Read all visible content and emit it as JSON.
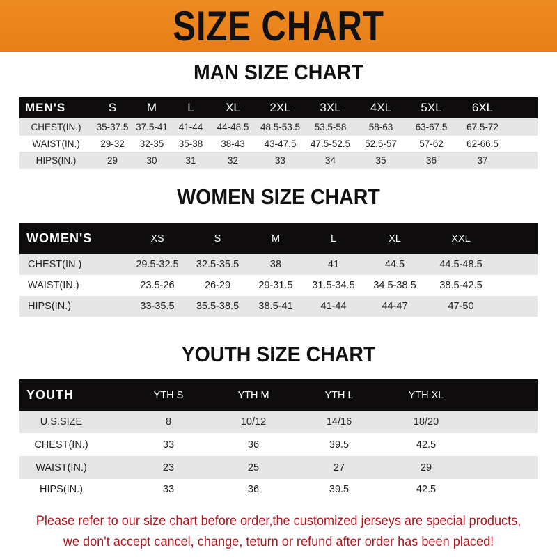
{
  "banner": {
    "title": "SIZE CHART",
    "color": "#ec8520"
  },
  "men": {
    "title": "MAN SIZE CHART",
    "header": [
      "MEN'S",
      "S",
      "M",
      "L",
      "XL",
      "2XL",
      "3XL",
      "4XL",
      "5XL",
      "6XL"
    ],
    "rows": [
      [
        "CHEST(IN.)",
        "35-37.5",
        "37.5-41",
        "41-44",
        "44-48.5",
        "48.5-53.5",
        "53.5-58",
        "58-63",
        "63-67.5",
        "67.5-72"
      ],
      [
        "WAIST(IN.)",
        "29-32",
        "32-35",
        "35-38",
        "38-43",
        "43-47.5",
        "47.5-52.5",
        "52.5-57",
        "57-62",
        "62-66.5"
      ],
      [
        "HIPS(IN.)",
        "29",
        "30",
        "31",
        "32",
        "33",
        "34",
        "35",
        "36",
        "37"
      ]
    ]
  },
  "women": {
    "title": "WOMEN SIZE CHART",
    "header": [
      "WOMEN'S",
      "XS",
      "S",
      "M",
      "L",
      "XL",
      "XXL"
    ],
    "rows": [
      [
        "CHEST(IN.)",
        "29.5-32.5",
        "32.5-35.5",
        "38",
        "41",
        "44.5",
        "44.5-48.5"
      ],
      [
        "WAIST(IN.)",
        "23.5-26",
        "26-29",
        "29-31.5",
        "31.5-34.5",
        "34.5-38.5",
        "38.5-42.5"
      ],
      [
        "HIPS(IN.)",
        "33-35.5",
        "35.5-38.5",
        "38.5-41",
        "41-44",
        "44-47",
        "47-50"
      ]
    ]
  },
  "youth": {
    "title": "YOUTH SIZE CHART",
    "header": [
      "YOUTH",
      "YTH S",
      "YTH M",
      "YTH L",
      "YTH XL"
    ],
    "rows": [
      [
        "U.S.SIZE",
        "8",
        "10/12",
        "14/16",
        "18/20"
      ],
      [
        "CHEST(IN.)",
        "33",
        "36",
        "39.5",
        "42.5"
      ],
      [
        "WAIST(IN.)",
        "23",
        "25",
        "27",
        "29"
      ],
      [
        "HIPS(IN.)",
        "33",
        "36",
        "39.5",
        "42.5"
      ]
    ]
  },
  "note": {
    "line1": "Please refer to our size chart before order,the customized jerseys are special products,",
    "line2": "we don't accept cancel, change, teturn or refund after order has been placed!",
    "color": "#b5131c"
  }
}
